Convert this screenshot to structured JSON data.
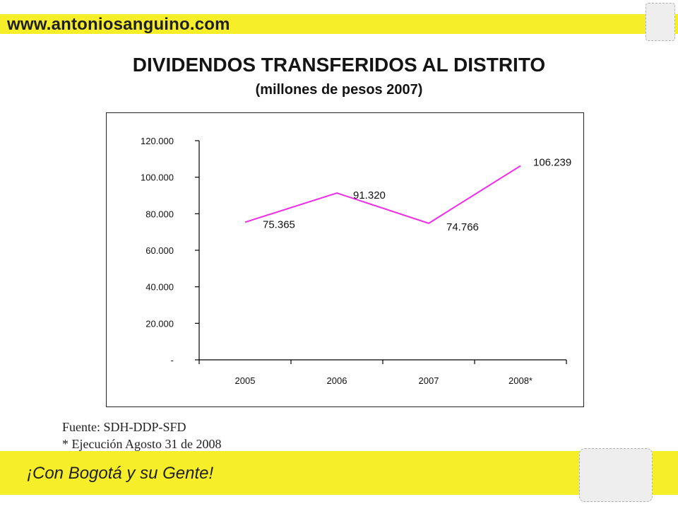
{
  "header": {
    "site_url": "www.antoniosanguino.com"
  },
  "page": {
    "title": "DIVIDENDOS TRANSFERIDOS AL DISTRITO",
    "subtitle": "(millones de pesos 2007)"
  },
  "chart_data": {
    "type": "line",
    "title": "",
    "xlabel": "",
    "ylabel": "",
    "categories": [
      "2005",
      "2006",
      "2007",
      "2008*"
    ],
    "series": [
      {
        "values": [
          75365,
          91320,
          74766,
          106239
        ],
        "labels": [
          "75.365",
          "91.320",
          "74.766",
          "106.239"
        ],
        "color": "#ee2ee6"
      }
    ],
    "ylim": [
      0,
      120000
    ],
    "yticks": [
      0,
      20000,
      40000,
      60000,
      80000,
      100000,
      120000
    ],
    "ytick_labels": [
      "-",
      "20.000",
      "40.000",
      "60.000",
      "80.000",
      "100.000",
      "120.000"
    ],
    "grid": false,
    "legend": "none"
  },
  "notes": {
    "source": "Fuente: SDH-DDP-SFD",
    "footnote": "* Ejecución Agosto 31 de 2008"
  },
  "footer": {
    "slogan": "¡Con Bogotá y su Gente!"
  }
}
